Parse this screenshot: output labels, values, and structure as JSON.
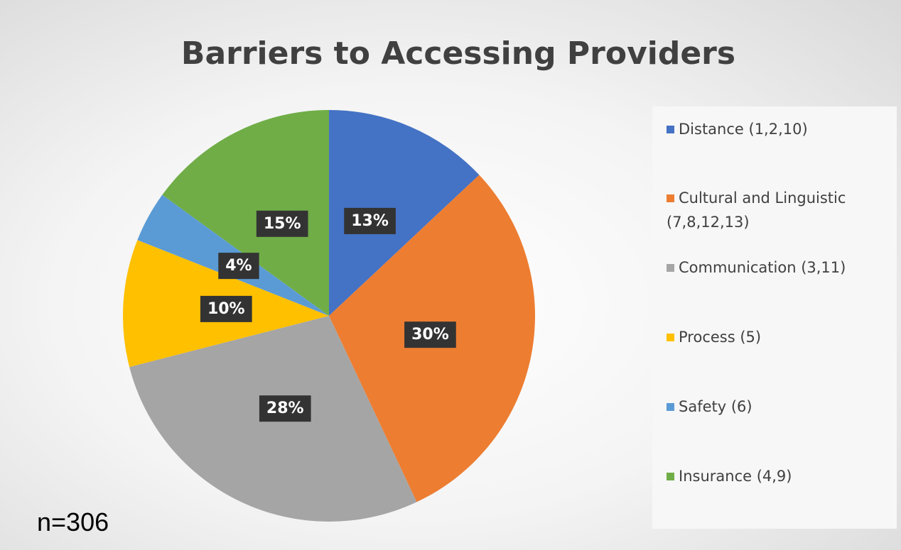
{
  "chart_data": {
    "type": "pie",
    "title": "Barriers to Accessing Providers",
    "categories": [
      "Distance (1,2,10)",
      "Cultural and Linguistic (7,8,12,13)",
      "Communication (3,11)",
      "Process (5)",
      "Safety (6)",
      "Insurance (4,9)"
    ],
    "values": [
      13,
      30,
      28,
      10,
      4,
      15
    ],
    "value_labels": [
      "13%",
      "30%",
      "28%",
      "10%",
      "4%",
      "15%"
    ],
    "colors": [
      "#4472c4",
      "#ed7d31",
      "#a5a5a5",
      "#ffc000",
      "#5b9bd5",
      "#70ad47"
    ],
    "legend": "right",
    "annotation": "n=306"
  }
}
